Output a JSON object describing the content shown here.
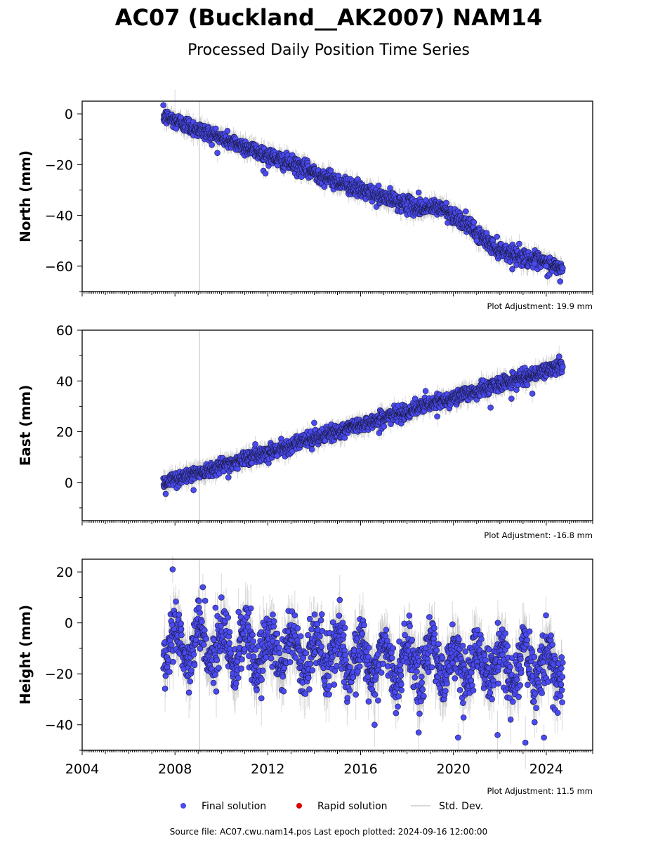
{
  "figure": {
    "title": "AC07 (Buckland__AK2007) NAM14",
    "subtitle": "Processed Daily Position Time Series",
    "footer": "Source file: AC07.cwu.nam14.pos  Last epoch plotted: 2024-09-16 12:00:00"
  },
  "legend": {
    "items": [
      {
        "label": "Final solution",
        "color": "#4a4af2"
      },
      {
        "label": "Rapid solution",
        "color": "#e00000"
      },
      {
        "label": "Std. Dev.",
        "color": "#cccccc"
      }
    ]
  },
  "colors": {
    "final": "#4a4af2",
    "rapid": "#e00000",
    "std": "#bbbbbb",
    "vline": "#c8c8c8"
  },
  "chart_data": [
    {
      "type": "scatter",
      "panel": "north",
      "ylabel": "North (mm)",
      "ylim": [
        -70,
        5
      ],
      "yticks": [
        0,
        -20,
        -40,
        -60
      ],
      "xlim": [
        2004,
        2026
      ],
      "xticks": [],
      "adjustment": "Plot Adjustment: 19.9 mm",
      "vline_x": 2009.05,
      "x_start": 2007.5,
      "x_end": 2024.71,
      "trend": [
        [
          2007.5,
          -1
        ],
        [
          2016.0,
          -30
        ],
        [
          2017.0,
          -33
        ],
        [
          2018.5,
          -37
        ],
        [
          2019.5,
          -37
        ],
        [
          2020.5,
          -43
        ],
        [
          2021.8,
          -53
        ],
        [
          2024.71,
          -61
        ]
      ],
      "noise_sd": 1.6,
      "std_len": 3,
      "outliers": [
        [
          2008.0,
          6
        ],
        [
          2011.9,
          -23.5
        ],
        [
          2018.5,
          -31
        ],
        [
          2021.0,
          -50
        ],
        [
          2023.5,
          -59
        ],
        [
          2024.0,
          -60
        ],
        [
          2024.6,
          -66
        ]
      ],
      "series": [
        {
          "name": "Final solution",
          "values": []
        }
      ]
    },
    {
      "type": "scatter",
      "panel": "east",
      "ylabel": "East (mm)",
      "ylim": [
        -15,
        60
      ],
      "yticks": [
        0,
        20,
        40,
        60
      ],
      "xlim": [
        2004,
        2026
      ],
      "xticks": [],
      "adjustment": "Plot Adjustment: -16.8 mm",
      "vline_x": 2009.05,
      "x_start": 2007.5,
      "x_end": 2024.71,
      "trend": [
        [
          2007.5,
          0
        ],
        [
          2024.71,
          46
        ]
      ],
      "noise_sd": 1.4,
      "std_len": 3,
      "outliers": [
        [
          2007.6,
          -4.5
        ],
        [
          2008.8,
          -3
        ],
        [
          2010.3,
          2
        ],
        [
          2012.4,
          10.5
        ],
        [
          2013.9,
          13
        ],
        [
          2014.0,
          23.5
        ],
        [
          2016.8,
          19.5
        ],
        [
          2018.8,
          36
        ],
        [
          2019.3,
          26
        ],
        [
          2021.6,
          29.5
        ],
        [
          2022.5,
          33
        ],
        [
          2023.4,
          35
        ]
      ],
      "series": [
        {
          "name": "Final solution",
          "values": []
        }
      ]
    },
    {
      "type": "scatter",
      "panel": "height",
      "ylabel": "Height (mm)",
      "ylim": [
        -50,
        25
      ],
      "yticks": [
        20,
        0,
        -20,
        -40
      ],
      "xlim": [
        2004,
        2026
      ],
      "xticks": [
        2004,
        2008,
        2012,
        2016,
        2020,
        2024
      ],
      "adjustment": "Plot Adjustment: 11.5 mm",
      "vline_x": 2009.05,
      "x_start": 2007.5,
      "x_end": 2024.71,
      "trend": [
        [
          2007.5,
          -8
        ],
        [
          2012.0,
          -11
        ],
        [
          2016.0,
          -14
        ],
        [
          2020.0,
          -16
        ],
        [
          2024.71,
          -17
        ]
      ],
      "seasonal_amp": 7,
      "noise_sd": 5.5,
      "std_len": 8,
      "outliers": [
        [
          2007.9,
          21
        ],
        [
          2009.2,
          14
        ],
        [
          2010.0,
          10
        ],
        [
          2015.1,
          9
        ],
        [
          2016.6,
          -40
        ],
        [
          2018.5,
          -43
        ],
        [
          2020.2,
          -45
        ],
        [
          2021.9,
          -44
        ],
        [
          2023.1,
          -47
        ],
        [
          2023.9,
          -45
        ]
      ],
      "series": [
        {
          "name": "Final solution",
          "values": []
        }
      ]
    }
  ]
}
